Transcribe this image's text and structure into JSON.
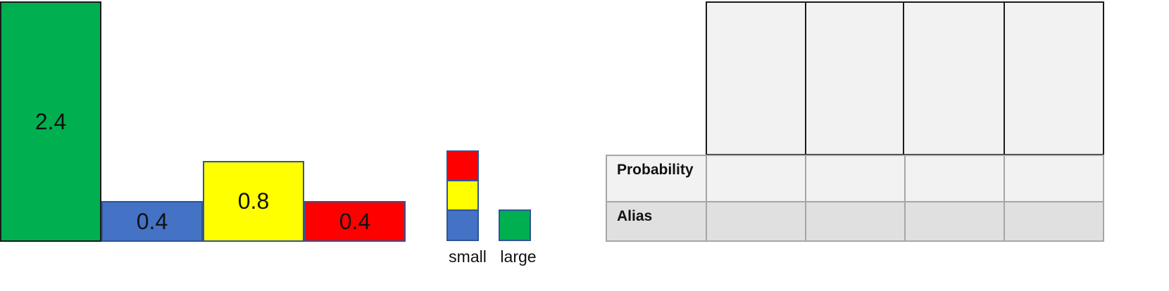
{
  "bars": [
    {
      "value": "2.4",
      "color": "#00b050"
    },
    {
      "value": "0.4",
      "color": "#4472c4"
    },
    {
      "value": "0.8",
      "color": "#ffff00"
    },
    {
      "value": "0.4",
      "color": "#ff0000"
    }
  ],
  "worklists": {
    "small": {
      "label": "small",
      "colors": [
        "#ff0000",
        "#ffff00",
        "#4472c4"
      ]
    },
    "large": {
      "label": "large",
      "colors": [
        "#00b050"
      ]
    }
  },
  "table": {
    "rows": [
      {
        "label": "Probability",
        "background": "#f2f2f2",
        "cells": [
          "",
          "",
          "",
          ""
        ]
      },
      {
        "label": "Alias",
        "background": "#e0e0e0",
        "cells": [
          "",
          "",
          "",
          ""
        ]
      }
    ],
    "column_box_color": "#f2f2f2"
  }
}
